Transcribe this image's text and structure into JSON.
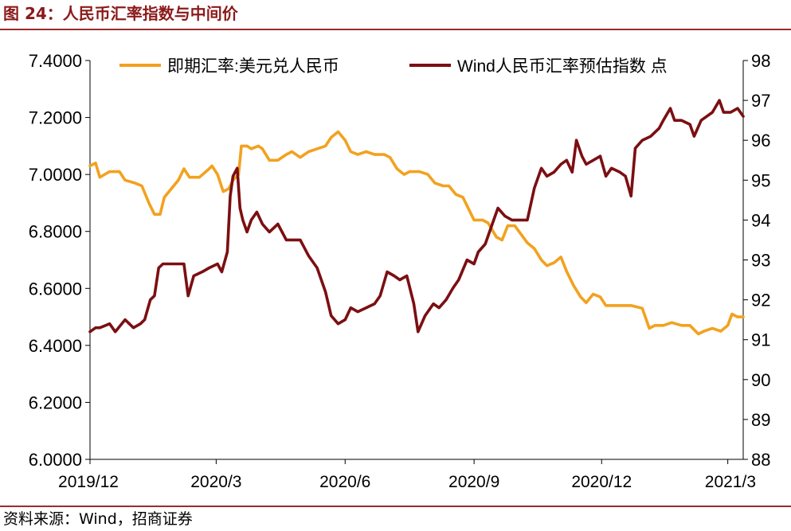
{
  "figure": {
    "title": "图 24：人民币汇率指数与中间价",
    "source": "资料来源：Wind，招商证券"
  },
  "colors": {
    "spot": "#F2A21F",
    "index": "#7B0F12",
    "accent_rule": "#9B2C2C",
    "title": "#8B1A1A"
  },
  "chart_data": {
    "type": "line",
    "title": "",
    "legend_placement": "top",
    "grid": false,
    "x_ticks": [
      "2019/12",
      "2020/3",
      "2020/6",
      "2020/9",
      "2020/12",
      "2021/3"
    ],
    "x_range": [
      "2019-12-02",
      "2021-03-12"
    ],
    "y_left": {
      "range": [
        6.0,
        7.4
      ],
      "ticks": [
        "6.0000",
        "6.2000",
        "6.4000",
        "6.6000",
        "6.8000",
        "7.0000",
        "7.2000",
        "7.4000"
      ]
    },
    "y_right": {
      "range": [
        88,
        98
      ],
      "ticks": [
        "88",
        "89",
        "90",
        "91",
        "92",
        "93",
        "94",
        "95",
        "96",
        "97",
        "98"
      ]
    },
    "series": [
      {
        "name": "即期汇率:美元兑人民币",
        "axis": "left",
        "color": "#F2A21F",
        "points": [
          [
            "2019-12-02",
            7.03
          ],
          [
            "2019-12-06",
            7.04
          ],
          [
            "2019-12-09",
            6.99
          ],
          [
            "2019-12-16",
            7.01
          ],
          [
            "2019-12-23",
            7.01
          ],
          [
            "2019-12-27",
            6.98
          ],
          [
            "2020-01-03",
            6.97
          ],
          [
            "2020-01-08",
            6.96
          ],
          [
            "2020-01-13",
            6.9
          ],
          [
            "2020-01-17",
            6.86
          ],
          [
            "2020-01-21",
            6.86
          ],
          [
            "2020-01-24",
            6.92
          ],
          [
            "2020-02-03",
            6.98
          ],
          [
            "2020-02-07",
            7.02
          ],
          [
            "2020-02-11",
            6.99
          ],
          [
            "2020-02-18",
            6.99
          ],
          [
            "2020-02-25",
            7.02
          ],
          [
            "2020-02-27",
            7.03
          ],
          [
            "2020-03-02",
            7.0
          ],
          [
            "2020-03-06",
            6.94
          ],
          [
            "2020-03-10",
            6.95
          ],
          [
            "2020-03-13",
            6.98
          ],
          [
            "2020-03-17",
            7.0
          ],
          [
            "2020-03-19",
            7.1
          ],
          [
            "2020-03-23",
            7.1
          ],
          [
            "2020-03-26",
            7.09
          ],
          [
            "2020-03-31",
            7.1
          ],
          [
            "2020-04-03",
            7.09
          ],
          [
            "2020-04-08",
            7.05
          ],
          [
            "2020-04-14",
            7.05
          ],
          [
            "2020-04-20",
            7.07
          ],
          [
            "2020-04-24",
            7.08
          ],
          [
            "2020-04-30",
            7.06
          ],
          [
            "2020-05-06",
            7.08
          ],
          [
            "2020-05-12",
            7.09
          ],
          [
            "2020-05-18",
            7.1
          ],
          [
            "2020-05-22",
            7.13
          ],
          [
            "2020-05-27",
            7.15
          ],
          [
            "2020-06-01",
            7.12
          ],
          [
            "2020-06-05",
            7.08
          ],
          [
            "2020-06-10",
            7.07
          ],
          [
            "2020-06-16",
            7.08
          ],
          [
            "2020-06-22",
            7.07
          ],
          [
            "2020-06-29",
            7.07
          ],
          [
            "2020-07-03",
            7.06
          ],
          [
            "2020-07-08",
            7.02
          ],
          [
            "2020-07-13",
            7.0
          ],
          [
            "2020-07-17",
            7.01
          ],
          [
            "2020-07-24",
            7.01
          ],
          [
            "2020-07-30",
            7.0
          ],
          [
            "2020-08-04",
            6.97
          ],
          [
            "2020-08-10",
            6.96
          ],
          [
            "2020-08-14",
            6.96
          ],
          [
            "2020-08-19",
            6.93
          ],
          [
            "2020-08-24",
            6.92
          ],
          [
            "2020-08-28",
            6.88
          ],
          [
            "2020-09-01",
            6.84
          ],
          [
            "2020-09-07",
            6.84
          ],
          [
            "2020-09-11",
            6.83
          ],
          [
            "2020-09-17",
            6.78
          ],
          [
            "2020-09-21",
            6.77
          ],
          [
            "2020-09-25",
            6.82
          ],
          [
            "2020-09-30",
            6.82
          ],
          [
            "2020-10-09",
            6.76
          ],
          [
            "2020-10-14",
            6.74
          ],
          [
            "2020-10-19",
            6.7
          ],
          [
            "2020-10-23",
            6.68
          ],
          [
            "2020-10-28",
            6.69
          ],
          [
            "2020-11-02",
            6.71
          ],
          [
            "2020-11-06",
            6.66
          ],
          [
            "2020-11-11",
            6.61
          ],
          [
            "2020-11-16",
            6.57
          ],
          [
            "2020-11-20",
            6.55
          ],
          [
            "2020-11-25",
            6.58
          ],
          [
            "2020-11-30",
            6.57
          ],
          [
            "2020-12-04",
            6.54
          ],
          [
            "2020-12-10",
            6.54
          ],
          [
            "2020-12-16",
            6.54
          ],
          [
            "2020-12-22",
            6.54
          ],
          [
            "2020-12-30",
            6.53
          ],
          [
            "2021-01-04",
            6.46
          ],
          [
            "2021-01-08",
            6.47
          ],
          [
            "2021-01-14",
            6.47
          ],
          [
            "2021-01-20",
            6.48
          ],
          [
            "2021-01-27",
            6.47
          ],
          [
            "2021-02-02",
            6.47
          ],
          [
            "2021-02-08",
            6.44
          ],
          [
            "2021-02-12",
            6.45
          ],
          [
            "2021-02-18",
            6.46
          ],
          [
            "2021-02-24",
            6.45
          ],
          [
            "2021-03-01",
            6.47
          ],
          [
            "2021-03-04",
            6.51
          ],
          [
            "2021-03-08",
            6.5
          ],
          [
            "2021-03-12",
            6.5
          ]
        ]
      },
      {
        "name": "Wind人民币汇率预估指数 点",
        "axis": "right",
        "color": "#7B0F12",
        "points": [
          [
            "2019-12-02",
            91.2
          ],
          [
            "2019-12-06",
            91.3
          ],
          [
            "2019-12-09",
            91.3
          ],
          [
            "2019-12-16",
            91.4
          ],
          [
            "2019-12-20",
            91.2
          ],
          [
            "2019-12-27",
            91.5
          ],
          [
            "2020-01-02",
            91.3
          ],
          [
            "2020-01-07",
            91.4
          ],
          [
            "2020-01-10",
            91.5
          ],
          [
            "2020-01-14",
            92.0
          ],
          [
            "2020-01-17",
            92.1
          ],
          [
            "2020-01-20",
            92.8
          ],
          [
            "2020-01-23",
            92.9
          ],
          [
            "2020-02-03",
            92.9
          ],
          [
            "2020-02-07",
            92.9
          ],
          [
            "2020-02-10",
            92.1
          ],
          [
            "2020-02-14",
            92.6
          ],
          [
            "2020-02-20",
            92.7
          ],
          [
            "2020-02-25",
            92.8
          ],
          [
            "2020-03-02",
            92.9
          ],
          [
            "2020-03-05",
            92.7
          ],
          [
            "2020-03-09",
            93.2
          ],
          [
            "2020-03-11",
            94.6
          ],
          [
            "2020-03-13",
            95.1
          ],
          [
            "2020-03-16",
            95.3
          ],
          [
            "2020-03-18",
            94.3
          ],
          [
            "2020-03-20",
            94.0
          ],
          [
            "2020-03-23",
            93.7
          ],
          [
            "2020-03-26",
            94.0
          ],
          [
            "2020-03-30",
            94.2
          ],
          [
            "2020-04-03",
            93.9
          ],
          [
            "2020-04-08",
            93.7
          ],
          [
            "2020-04-14",
            93.9
          ],
          [
            "2020-04-20",
            93.5
          ],
          [
            "2020-04-24",
            93.5
          ],
          [
            "2020-04-30",
            93.5
          ],
          [
            "2020-05-06",
            93.1
          ],
          [
            "2020-05-12",
            92.8
          ],
          [
            "2020-05-18",
            92.2
          ],
          [
            "2020-05-22",
            91.6
          ],
          [
            "2020-05-27",
            91.4
          ],
          [
            "2020-06-01",
            91.5
          ],
          [
            "2020-06-05",
            91.8
          ],
          [
            "2020-06-10",
            91.7
          ],
          [
            "2020-06-16",
            91.8
          ],
          [
            "2020-06-22",
            91.9
          ],
          [
            "2020-06-26",
            92.1
          ],
          [
            "2020-07-01",
            92.7
          ],
          [
            "2020-07-06",
            92.6
          ],
          [
            "2020-07-10",
            92.5
          ],
          [
            "2020-07-15",
            92.6
          ],
          [
            "2020-07-20",
            91.9
          ],
          [
            "2020-07-23",
            91.2
          ],
          [
            "2020-07-28",
            91.6
          ],
          [
            "2020-08-03",
            91.9
          ],
          [
            "2020-08-07",
            91.8
          ],
          [
            "2020-08-12",
            92.0
          ],
          [
            "2020-08-17",
            92.3
          ],
          [
            "2020-08-21",
            92.5
          ],
          [
            "2020-08-27",
            93.0
          ],
          [
            "2020-09-01",
            92.9
          ],
          [
            "2020-09-04",
            93.2
          ],
          [
            "2020-09-09",
            93.4
          ],
          [
            "2020-09-14",
            93.9
          ],
          [
            "2020-09-18",
            94.3
          ],
          [
            "2020-09-23",
            94.1
          ],
          [
            "2020-09-28",
            94.0
          ],
          [
            "2020-10-09",
            94.0
          ],
          [
            "2020-10-14",
            94.8
          ],
          [
            "2020-10-19",
            95.3
          ],
          [
            "2020-10-23",
            95.1
          ],
          [
            "2020-10-28",
            95.2
          ],
          [
            "2020-11-02",
            95.4
          ],
          [
            "2020-11-06",
            95.5
          ],
          [
            "2020-11-10",
            95.2
          ],
          [
            "2020-11-13",
            96.0
          ],
          [
            "2020-11-17",
            95.6
          ],
          [
            "2020-11-20",
            95.4
          ],
          [
            "2020-11-25",
            95.5
          ],
          [
            "2020-11-30",
            95.6
          ],
          [
            "2020-12-04",
            95.1
          ],
          [
            "2020-12-08",
            95.3
          ],
          [
            "2020-12-14",
            95.2
          ],
          [
            "2020-12-18",
            95.1
          ],
          [
            "2020-12-22",
            94.6
          ],
          [
            "2020-12-25",
            95.8
          ],
          [
            "2020-12-30",
            96.0
          ],
          [
            "2021-01-05",
            96.1
          ],
          [
            "2021-01-11",
            96.3
          ],
          [
            "2021-01-14",
            96.5
          ],
          [
            "2021-01-19",
            96.8
          ],
          [
            "2021-01-22",
            96.5
          ],
          [
            "2021-01-27",
            96.5
          ],
          [
            "2021-02-02",
            96.4
          ],
          [
            "2021-02-05",
            96.1
          ],
          [
            "2021-02-10",
            96.5
          ],
          [
            "2021-02-18",
            96.7
          ],
          [
            "2021-02-23",
            97.0
          ],
          [
            "2021-02-26",
            96.7
          ],
          [
            "2021-03-03",
            96.7
          ],
          [
            "2021-03-08",
            96.8
          ],
          [
            "2021-03-12",
            96.6
          ]
        ]
      }
    ]
  }
}
